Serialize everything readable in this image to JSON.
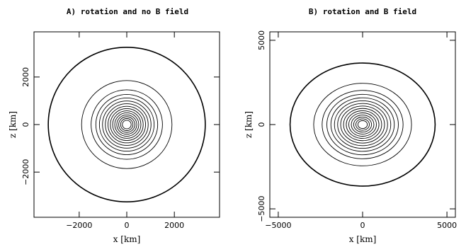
{
  "chart_data": [
    {
      "type": "contour",
      "title": "A) rotation and no B field",
      "xlabel": "x [km]",
      "ylabel": "z [km]",
      "xlim": [
        -3900,
        3900
      ],
      "ylim": [
        -3900,
        3900
      ],
      "xticks": [
        -2000,
        0,
        2000
      ],
      "yticks": [
        -2000,
        0,
        2000
      ],
      "xtick_labels": [
        "−2000",
        "0",
        "2000"
      ],
      "ytick_labels": [
        "−2000",
        "0",
        "2000"
      ],
      "contours": {
        "outer": {
          "a": 3300,
          "b": 3250
        },
        "inner_start": {
          "a": 1900,
          "b": 1850
        },
        "inner_count": 14,
        "inner_radii": [
          1900,
          1500,
          1300,
          1150,
          1020,
          900,
          790,
          690,
          595,
          505,
          420,
          340,
          260,
          185
        ]
      }
    },
    {
      "type": "contour",
      "title": "B) rotation and B field",
      "xlabel": "x [km]",
      "ylabel": "z [km]",
      "xlim": [
        -5500,
        5500
      ],
      "ylim": [
        -5500,
        5500
      ],
      "xticks": [
        -5000,
        0,
        5000
      ],
      "yticks": [
        -5000,
        0,
        5000
      ],
      "xtick_labels": [
        "−5000",
        "0",
        "5000"
      ],
      "ytick_labels": [
        "−5000",
        "0",
        "5000"
      ],
      "contours": {
        "outer": {
          "a": 4300,
          "b": 3650
        },
        "inner_start": {
          "a": 2900,
          "b": 2450
        },
        "inner_count": 14,
        "inner_radii": [
          2900,
          2400,
          2120,
          1880,
          1670,
          1480,
          1300,
          1130,
          970,
          820,
          670,
          530,
          400,
          280
        ]
      }
    }
  ]
}
